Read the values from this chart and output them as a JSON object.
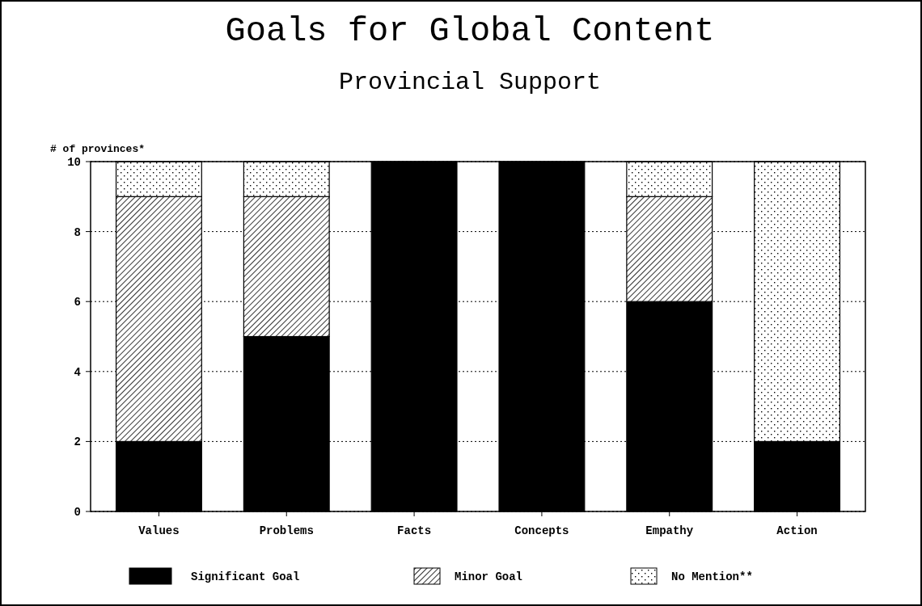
{
  "chart_data": {
    "type": "bar",
    "stacked": true,
    "title": "Goals for Global Content",
    "subtitle": "Provincial Support",
    "ylabel": "# of provinces*",
    "categories": [
      "Values",
      "Problems",
      "Facts",
      "Concepts",
      "Empathy",
      "Action"
    ],
    "series": [
      {
        "name": "Significant Goal",
        "color": "#000000",
        "values": [
          2,
          5,
          10,
          10,
          6,
          2
        ]
      },
      {
        "name": "Minor Goal",
        "color": "#000000",
        "values": [
          7,
          4,
          0,
          0,
          3,
          0
        ]
      },
      {
        "name": "No Mention**",
        "color": "#000000",
        "values": [
          1,
          1,
          0,
          0,
          1,
          8
        ]
      }
    ],
    "ylim": [
      0,
      10
    ],
    "yticks": [
      0,
      2,
      4,
      6,
      8,
      10
    ],
    "grid": "y",
    "legend": "bottom"
  }
}
